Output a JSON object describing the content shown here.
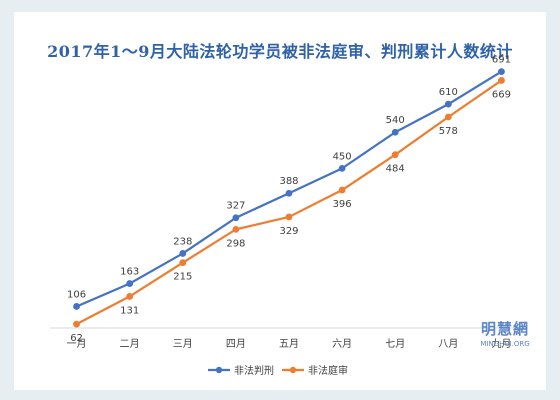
{
  "chart_data": {
    "type": "line",
    "title": "2017年1～9月大陆法轮功学员被非法庭审、判刑累计人数统计",
    "categories": [
      "一月",
      "二月",
      "三月",
      "四月",
      "五月",
      "六月",
      "七月",
      "八月",
      "九月"
    ],
    "series": [
      {
        "name": "非法判刑",
        "color": "#4472c4",
        "values": [
          106,
          163,
          238,
          327,
          388,
          450,
          540,
          610,
          691
        ]
      },
      {
        "name": "非法庭审",
        "color": "#ed7d31",
        "values": [
          62,
          131,
          215,
          298,
          329,
          396,
          484,
          578,
          669
        ]
      }
    ],
    "xlabel": "",
    "ylabel": "",
    "ylim": [
      0,
      700
    ],
    "grid": false,
    "legend": "bottom",
    "data_labels": true
  },
  "watermark": {
    "logo": "明慧網",
    "url": "MINGHUI.ORG"
  }
}
